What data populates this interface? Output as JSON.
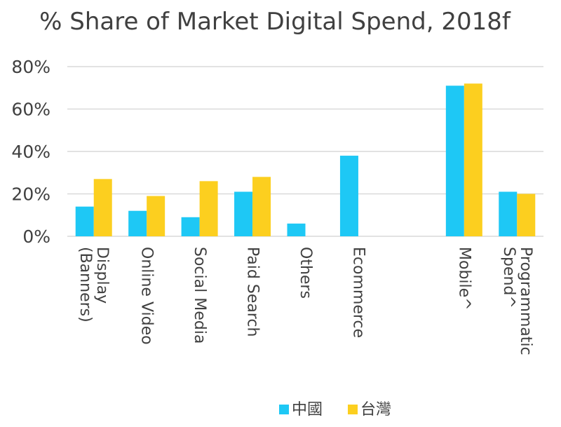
{
  "chart_data": {
    "type": "bar",
    "title": "% Share of Market Digital Spend, 2018f",
    "categories": [
      [
        "Display",
        "(Banners)"
      ],
      [
        "Online Video"
      ],
      [
        "Social Media"
      ],
      [
        "Paid Search"
      ],
      [
        "Others"
      ],
      [
        "Ecommerce"
      ],
      [],
      [
        "Mobile^"
      ],
      [
        "Programmatic",
        "Spend^"
      ]
    ],
    "series": [
      {
        "name": "中國",
        "color": "#1ec8f5",
        "values": [
          14,
          12,
          9,
          21,
          6,
          38,
          null,
          71,
          21
        ]
      },
      {
        "name": "台灣",
        "color": "#fccf1f",
        "values": [
          27,
          19,
          26,
          28,
          null,
          null,
          null,
          72,
          20
        ]
      }
    ],
    "ylim": [
      0,
      80
    ],
    "yticks": [
      "0%",
      "20%",
      "40%",
      "60%",
      "80%"
    ],
    "ytick_values": [
      0,
      20,
      40,
      60,
      80
    ],
    "grid": true,
    "legend_position": "bottom-center"
  }
}
